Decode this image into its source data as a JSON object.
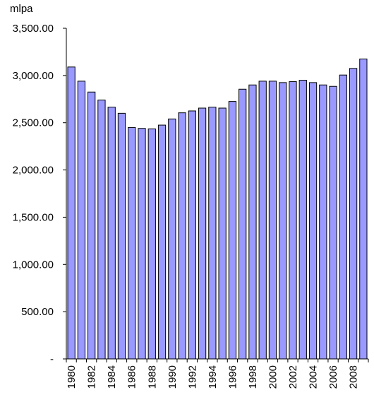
{
  "chart_data": {
    "type": "bar",
    "unit_label": "mlpa",
    "categories": [
      "1980",
      "1981",
      "1982",
      "1983",
      "1984",
      "1985",
      "1986",
      "1987",
      "1988",
      "1989",
      "1990",
      "1991",
      "1992",
      "1993",
      "1994",
      "1995",
      "1996",
      "1997",
      "1998",
      "1999",
      "2000",
      "2001",
      "2002",
      "2003",
      "2004",
      "2005",
      "2006",
      "2007",
      "2008",
      "2009"
    ],
    "values": [
      3090,
      2940,
      2825,
      2740,
      2665,
      2600,
      2450,
      2440,
      2435,
      2475,
      2540,
      2605,
      2625,
      2655,
      2665,
      2655,
      2725,
      2855,
      2900,
      2940,
      2940,
      2925,
      2935,
      2950,
      2925,
      2900,
      2885,
      3005,
      3075,
      3175
    ],
    "ylim": [
      0,
      3500
    ],
    "y_ticks": [
      {
        "value": 0,
        "label": "-"
      },
      {
        "value": 500,
        "label": "500.00"
      },
      {
        "value": 1000,
        "label": "1,000.00"
      },
      {
        "value": 1500,
        "label": "1,500.00"
      },
      {
        "value": 2000,
        "label": "2,000.00"
      },
      {
        "value": 2500,
        "label": "2,500.00"
      },
      {
        "value": 3000,
        "label": "3,000.00"
      },
      {
        "value": 3500,
        "label": "3,500.00"
      }
    ],
    "x_tick_labels": [
      "1980",
      "1982",
      "1984",
      "1986",
      "1988",
      "1990",
      "1992",
      "1994",
      "1996",
      "1998",
      "2000",
      "2002",
      "2004",
      "2006",
      "2008"
    ],
    "grid": false,
    "legend": "none",
    "colors": {
      "bar_fill": "#9999ff",
      "bar_stroke": "#000000",
      "axis": "#000000"
    }
  }
}
